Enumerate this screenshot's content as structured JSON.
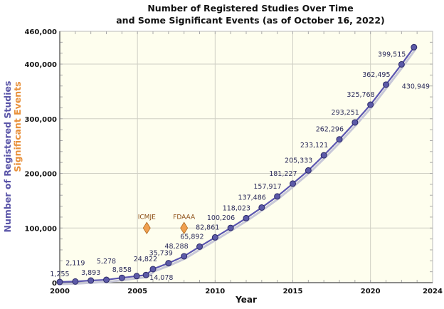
{
  "chart_data": {
    "type": "line",
    "title": "Number of Registered Studies Over Time",
    "subtitle": "and Some Significant Events (as of October 16, 2022)",
    "xlabel": "Year",
    "ylabel": "Number of Registered Studies",
    "ylabel2": "Significant Events",
    "xlim": [
      2000,
      2024
    ],
    "ylim": [
      0,
      460000
    ],
    "x_ticks": [
      "2000",
      "2005",
      "2010",
      "2015",
      "2020",
      "2024"
    ],
    "y_ticks": [
      "0",
      "100,000",
      "200,000",
      "300,000",
      "400,000",
      "460,000"
    ],
    "grid": true,
    "series": [
      {
        "points": [
          {
            "x": 2000,
            "y": 1255,
            "label": "1,255"
          },
          {
            "x": 2001,
            "y": 2119,
            "label": "2,119"
          },
          {
            "x": 2002,
            "y": 3893,
            "label": "3,893"
          },
          {
            "x": 2003,
            "y": 5278,
            "label": "5,278"
          },
          {
            "x": 2004,
            "y": 8858,
            "label": "8,858"
          },
          {
            "x": 2004.95,
            "y": 12000,
            "label": ""
          },
          {
            "x": 2005.55,
            "y": 14078,
            "label": "14,078"
          },
          {
            "x": 2006,
            "y": 24822,
            "label": "24,822"
          },
          {
            "x": 2007,
            "y": 35739,
            "label": "35,739"
          },
          {
            "x": 2008,
            "y": 48288,
            "label": "48,288"
          },
          {
            "x": 2009,
            "y": 65892,
            "label": "65,892"
          },
          {
            "x": 2010,
            "y": 82861,
            "label": "82,861"
          },
          {
            "x": 2011,
            "y": 100206,
            "label": "100,206"
          },
          {
            "x": 2012,
            "y": 118023,
            "label": "118,023"
          },
          {
            "x": 2013,
            "y": 137486,
            "label": "137,486"
          },
          {
            "x": 2014,
            "y": 157917,
            "label": "157,917"
          },
          {
            "x": 2015,
            "y": 181227,
            "label": "181,227"
          },
          {
            "x": 2016,
            "y": 205333,
            "label": "205,333"
          },
          {
            "x": 2017,
            "y": 233121,
            "label": "233,121"
          },
          {
            "x": 2018,
            "y": 262296,
            "label": "262,296"
          },
          {
            "x": 2019,
            "y": 293251,
            "label": "293,251"
          },
          {
            "x": 2020,
            "y": 325768,
            "label": "325,768"
          },
          {
            "x": 2021,
            "y": 362495,
            "label": "362,495"
          },
          {
            "x": 2022,
            "y": 399515,
            "label": "399,515"
          },
          {
            "x": 2022.8,
            "y": 430949,
            "label": "430,949"
          }
        ]
      }
    ],
    "events": [
      {
        "x": 2005.6,
        "y": 100000,
        "label": "ICMJE"
      },
      {
        "x": 2008,
        "y": 100000,
        "label": "FDAAA"
      }
    ],
    "colors": {
      "line": "#5a55b0",
      "marker": "#5c5aa8",
      "shadow": "#c8c8d8",
      "event": "#f0a050",
      "plot_bg": "#fefeee",
      "grid": "#cfcfc4",
      "ylabel": "#5a55a8",
      "ylabel2": "#e8903a"
    }
  }
}
